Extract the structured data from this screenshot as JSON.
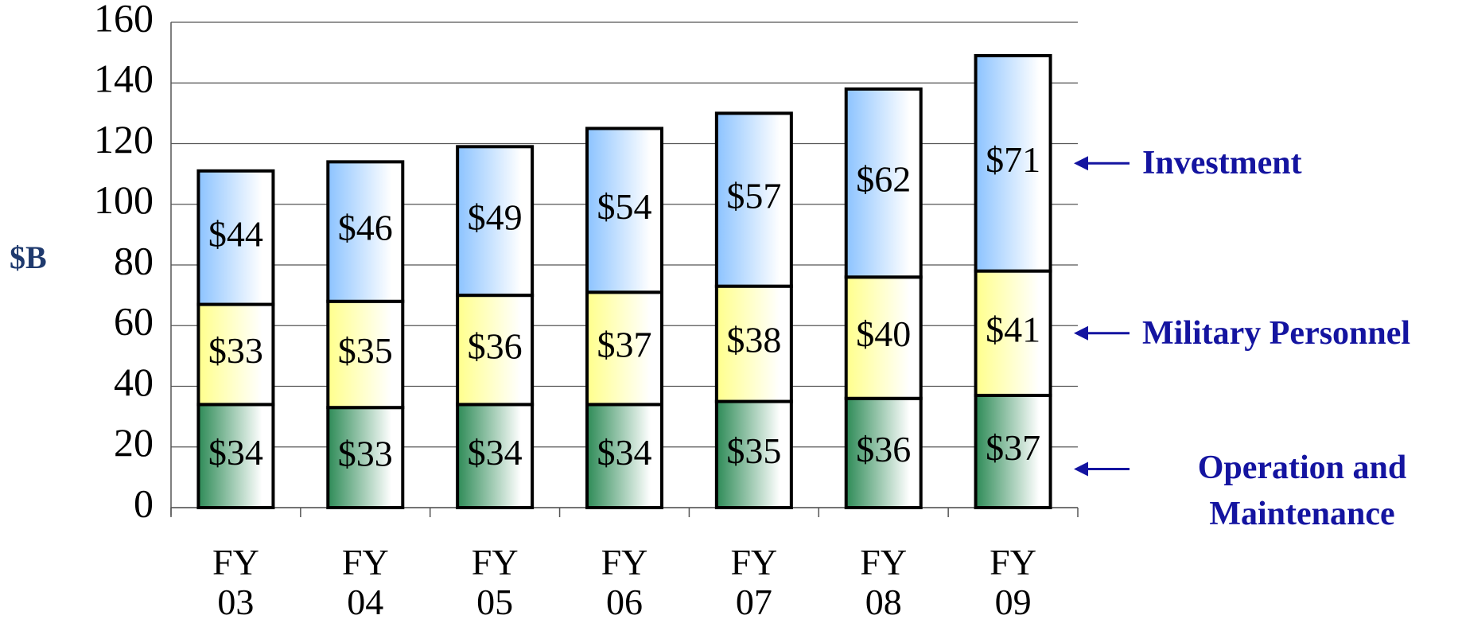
{
  "chart_data": {
    "type": "stacked_bar",
    "y_label": "$B",
    "categories": [
      "FY 03",
      "FY 04",
      "FY 05",
      "FY 06",
      "FY 07",
      "FY 08",
      "FY 09"
    ],
    "series": [
      {
        "name": "Operation and Maintenance",
        "color": "#2e8b57",
        "values": [
          34,
          33,
          34,
          34,
          35,
          36,
          37
        ],
        "value_labels": [
          "$34",
          "$33",
          "$34",
          "$34",
          "$35",
          "$36",
          "$37"
        ]
      },
      {
        "name": "Military Personnel",
        "color": "#ffff8c",
        "values": [
          33,
          35,
          36,
          37,
          38,
          40,
          41
        ],
        "value_labels": [
          "$33",
          "$35",
          "$36",
          "$37",
          "$38",
          "$40",
          "$41"
        ]
      },
      {
        "name": "Investment",
        "color": "#8cc3ff",
        "values": [
          44,
          46,
          49,
          54,
          57,
          62,
          71
        ],
        "value_labels": [
          "$44",
          "$46",
          "$49",
          "$54",
          "$57",
          "$62",
          "$71"
        ]
      }
    ],
    "ylim": [
      0,
      160
    ],
    "yticks": [
      0,
      20,
      40,
      60,
      80,
      100,
      120,
      140,
      160
    ],
    "grid": true
  }
}
